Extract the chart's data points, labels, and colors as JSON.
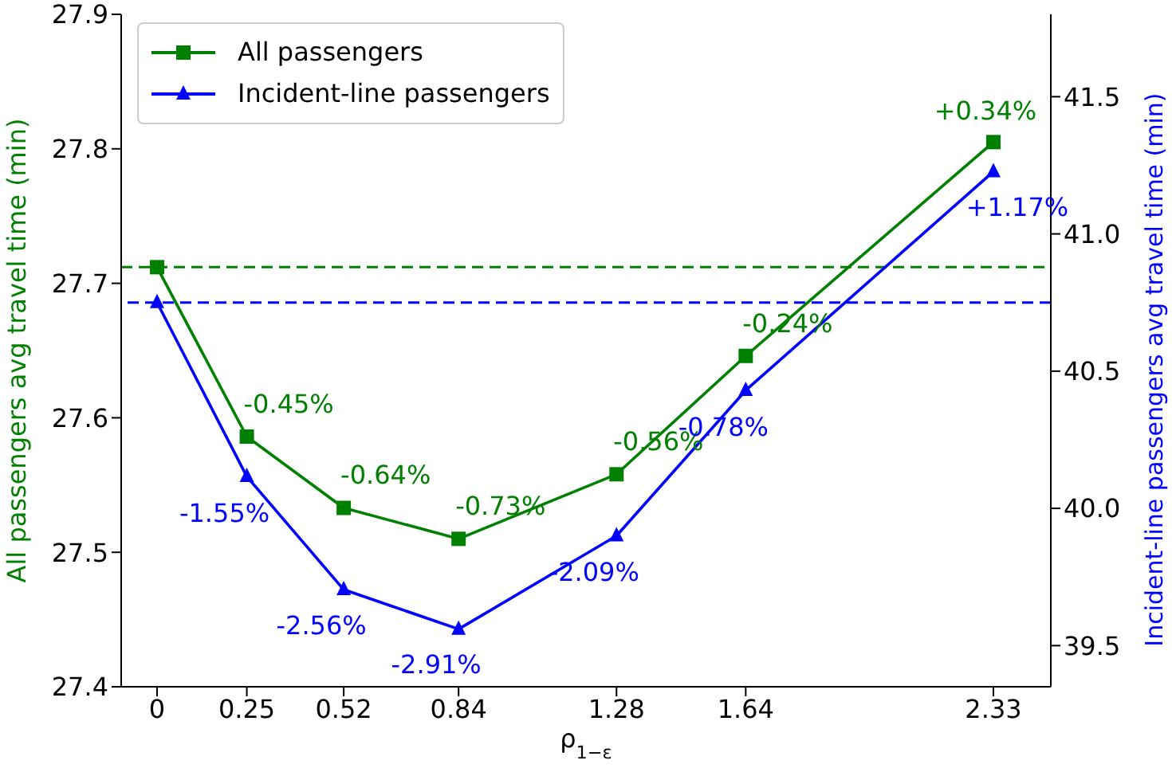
{
  "chart_data": {
    "type": "line",
    "xlabel": "ρ$_{1−ε}$",
    "ylabel": "All passengers avg travel time (min)",
    "y2label": "Incident-line passengers avg travel time (min)",
    "x": [
      0,
      0.25,
      0.52,
      0.84,
      1.28,
      1.64,
      2.33
    ],
    "xlim": [
      -0.1,
      2.49
    ],
    "xticks": [
      0,
      0.25,
      0.52,
      0.84,
      1.28,
      1.64,
      2.33
    ],
    "ylim": [
      27.4,
      27.9
    ],
    "yticks": [
      27.4,
      27.5,
      27.6,
      27.7,
      27.8,
      27.9
    ],
    "y2lim": [
      39.35,
      41.8
    ],
    "y2ticks": [
      39.5,
      {
        "value": 40,
        "label": "40.0"
      },
      40.5,
      {
        "value": 41,
        "label": "41.0"
      },
      41.5
    ],
    "series": [
      {
        "name": "All passengers",
        "color": "#008000",
        "marker": "square",
        "values": [
          27.712,
          27.586,
          27.533,
          27.51,
          27.558,
          27.646,
          27.805
        ]
      },
      {
        "name": "Incident-line passengers",
        "color": "#0000ff",
        "marker": "triangle",
        "axis": "y2",
        "values": [
          40.75,
          40.116,
          39.704,
          39.56,
          39.9,
          40.43,
          41.227
        ]
      }
    ],
    "annotations": [
      {
        "text": "-0.45%",
        "x": 0.25,
        "y": 27.586
      },
      {
        "text": "-0.64%",
        "x": 0.52,
        "y": 27.533
      },
      {
        "text": "-0.73%",
        "x": 0.84,
        "y": 27.51
      },
      {
        "text": "-0.56%",
        "x": 1.28,
        "y": 27.558
      },
      {
        "text": "-0.24%",
        "x": 1.64,
        "y": 27.646
      },
      {
        "text": "+0.34%",
        "x": 2.33,
        "y": 27.805
      },
      {
        "text": "-1.55%",
        "x": 0.25,
        "y": 27.556
      },
      {
        "text": "-2.56%",
        "x": 0.52,
        "y": 27.472
      },
      {
        "text": "-2.91%",
        "x": 0.84,
        "y": 27.443
      },
      {
        "text": "-2.09%",
        "x": 1.28,
        "y": 27.512
      },
      {
        "text": "-0.78%",
        "x": 1.64,
        "y": 27.62
      },
      {
        "text": "+1.17%",
        "x": 2.33,
        "y": 27.783
      }
    ],
    "ref_lines": [
      {
        "axis": "y",
        "value": 27.712,
        "color": "#008000",
        "line_style": "dashed"
      },
      {
        "axis": "y2",
        "value": 40.75,
        "color": "#0000ff",
        "line_style": "dashed"
      }
    ],
    "grid": false,
    "legend": "top left"
  }
}
